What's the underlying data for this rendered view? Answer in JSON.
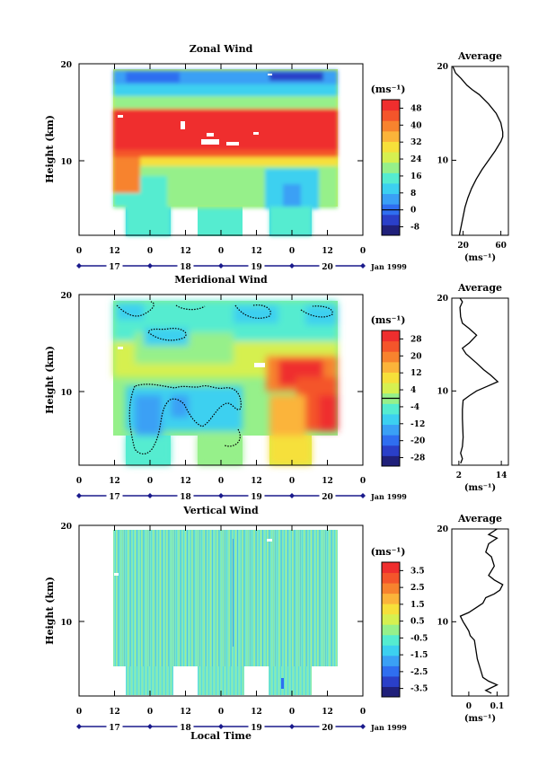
{
  "figure": {
    "x_axis_label": "Local Time",
    "time_ticks": [
      "0",
      "12",
      "0",
      "12",
      "0",
      "12",
      "0",
      "12",
      "0"
    ],
    "day_labels": [
      "17",
      "18",
      "19",
      "20"
    ],
    "month_label": "Jan 1999",
    "height_ticks": [
      "20",
      "10"
    ],
    "height_label": "Height (km)",
    "unit_label": "(ms⁻¹)",
    "average_title": "Average",
    "colors": {
      "palette": [
        "#20207a",
        "#2a3fc8",
        "#2f6ef0",
        "#3aa0f5",
        "#3cd0f0",
        "#55ecd0",
        "#96f08a",
        "#d6f050",
        "#f6e03a",
        "#fbb43a",
        "#f7832e",
        "#f4552b",
        "#ef2e2e"
      ]
    }
  },
  "chart_data": [
    {
      "type": "heatmap",
      "title": "Zonal Wind",
      "xlabel": "",
      "ylabel": "Height (km)",
      "y_ticks": [
        20,
        10
      ],
      "colorbar_unit": "(ms⁻¹)",
      "colorbar_ticks": [
        48,
        40,
        32,
        24,
        16,
        8,
        0,
        -8
      ],
      "colorbar_range": [
        -12,
        52
      ],
      "zero_line_value": 0,
      "average_profile": {
        "title": "Average",
        "xlabel": "(ms⁻¹)",
        "x_ticks": [
          20,
          60
        ],
        "xlim": [
          8,
          68
        ],
        "ylim": [
          2,
          20
        ],
        "points": [
          [
            16,
            2
          ],
          [
            18,
            3
          ],
          [
            20,
            4
          ],
          [
            22,
            5
          ],
          [
            25,
            6
          ],
          [
            29,
            7
          ],
          [
            34,
            8
          ],
          [
            40,
            9
          ],
          [
            47,
            10
          ],
          [
            54,
            11
          ],
          [
            60,
            12
          ],
          [
            62,
            12.5
          ],
          [
            62,
            13
          ],
          [
            60,
            14
          ],
          [
            55,
            15
          ],
          [
            47,
            16
          ],
          [
            37,
            17
          ],
          [
            30,
            17.5
          ],
          [
            24,
            18
          ],
          [
            18,
            18.7
          ],
          [
            12,
            19.3
          ],
          [
            9,
            20
          ]
        ]
      }
    },
    {
      "type": "heatmap",
      "title": "Meridional Wind",
      "xlabel": "",
      "ylabel": "Height (km)",
      "y_ticks": [
        20,
        10
      ],
      "colorbar_unit": "(ms⁻¹)",
      "colorbar_ticks": [
        28,
        20,
        12,
        4,
        -4,
        -12,
        -20,
        -28
      ],
      "colorbar_range": [
        -32,
        32
      ],
      "zero_line_value": 0,
      "average_profile": {
        "title": "Average",
        "xlabel": "(ms⁻¹)",
        "x_ticks": [
          2,
          14
        ],
        "xlim": [
          0,
          16
        ],
        "ylim": [
          2,
          20
        ],
        "points": [
          [
            2.5,
            2.2
          ],
          [
            3,
            2.7
          ],
          [
            2.5,
            3.3
          ],
          [
            3,
            4
          ],
          [
            3.2,
            5
          ],
          [
            3.1,
            6
          ],
          [
            3,
            7
          ],
          [
            3,
            8
          ],
          [
            3.2,
            9
          ],
          [
            5,
            9.5
          ],
          [
            7,
            10
          ],
          [
            10,
            10.5
          ],
          [
            13,
            11
          ],
          [
            11,
            11.7
          ],
          [
            9,
            12.3
          ],
          [
            7,
            13
          ],
          [
            4,
            14
          ],
          [
            3,
            14.6
          ],
          [
            5,
            15.2
          ],
          [
            7,
            16
          ],
          [
            5,
            16.7
          ],
          [
            3,
            17.3
          ],
          [
            2.5,
            18
          ],
          [
            2.3,
            19
          ],
          [
            3,
            19.6
          ],
          [
            2.3,
            20
          ]
        ]
      }
    },
    {
      "type": "heatmap",
      "title": "Vertical Wind",
      "xlabel": "Local Time",
      "ylabel": "Height (km)",
      "y_ticks": [
        20,
        10
      ],
      "colorbar_unit": "(ms⁻¹)",
      "colorbar_ticks": [
        3.5,
        2.5,
        1.5,
        0.5,
        -0.5,
        -1.5,
        -2.5,
        -3.5
      ],
      "colorbar_range": [
        -4,
        4
      ],
      "average_profile": {
        "title": "Average",
        "xlabel": "(ms⁻¹)",
        "x_ticks": [
          0.0,
          0.1
        ],
        "xlim": [
          -0.06,
          0.14
        ],
        "ylim": [
          2,
          20
        ],
        "points": [
          [
            0.08,
            2.3
          ],
          [
            0.06,
            2.6
          ],
          [
            0.1,
            3.2
          ],
          [
            0.07,
            3.6
          ],
          [
            0.05,
            4
          ],
          [
            0.04,
            5
          ],
          [
            0.03,
            6
          ],
          [
            0.025,
            7
          ],
          [
            0.02,
            8
          ],
          [
            0.005,
            8.5
          ],
          [
            0.0,
            9
          ],
          [
            -0.01,
            9.5
          ],
          [
            -0.02,
            10
          ],
          [
            -0.03,
            10.6
          ],
          [
            0.0,
            11
          ],
          [
            0.03,
            11.6
          ],
          [
            0.05,
            12
          ],
          [
            0.06,
            12.6
          ],
          [
            0.09,
            13
          ],
          [
            0.11,
            13.4
          ],
          [
            0.12,
            14
          ],
          [
            0.09,
            14.5
          ],
          [
            0.07,
            15
          ],
          [
            0.09,
            16
          ],
          [
            0.08,
            17
          ],
          [
            0.06,
            17.5
          ],
          [
            0.07,
            18.4
          ],
          [
            0.1,
            19
          ],
          [
            0.07,
            19.4
          ],
          [
            0.1,
            20
          ]
        ]
      }
    }
  ]
}
